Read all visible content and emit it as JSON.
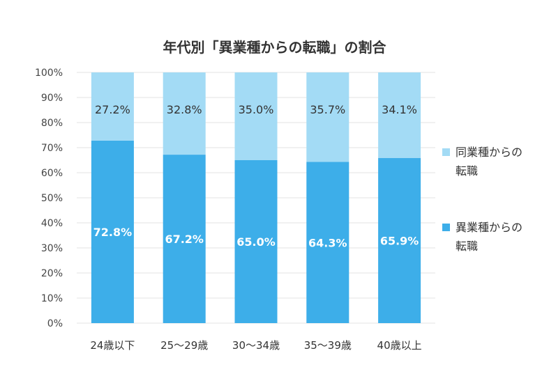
{
  "chart_data": {
    "type": "bar",
    "stacked": true,
    "title": "年代別「異業種からの転職」の割合",
    "xlabel": "",
    "ylabel": "",
    "ylim": [
      0,
      100
    ],
    "yticks": [
      "0%",
      "10%",
      "20%",
      "30%",
      "40%",
      "50%",
      "60%",
      "70%",
      "80%",
      "90%",
      "100%"
    ],
    "grid": true,
    "legend_position": "right",
    "categories": [
      "24歳以下",
      "25〜29歳",
      "30〜34歳",
      "35〜39歳",
      "40歳以上"
    ],
    "series": [
      {
        "name": "異業種からの転職",
        "values": [
          72.8,
          67.2,
          65.0,
          64.3,
          65.9
        ],
        "labels": [
          "72.8%",
          "67.2%",
          "65.0%",
          "64.3%",
          "65.9%"
        ],
        "color": "#3daee9",
        "label_color": "#ffffff"
      },
      {
        "name": "同業種からの転職",
        "values": [
          27.2,
          32.8,
          35.0,
          35.7,
          34.1
        ],
        "labels": [
          "27.2%",
          "32.8%",
          "35.0%",
          "35.7%",
          "34.1%"
        ],
        "color": "#a3dbf5",
        "label_color": "#333333"
      }
    ],
    "legend": [
      {
        "name": "同業種からの転職",
        "color": "#a3dbf5"
      },
      {
        "name": "異業種からの転職",
        "color": "#3daee9"
      }
    ]
  }
}
